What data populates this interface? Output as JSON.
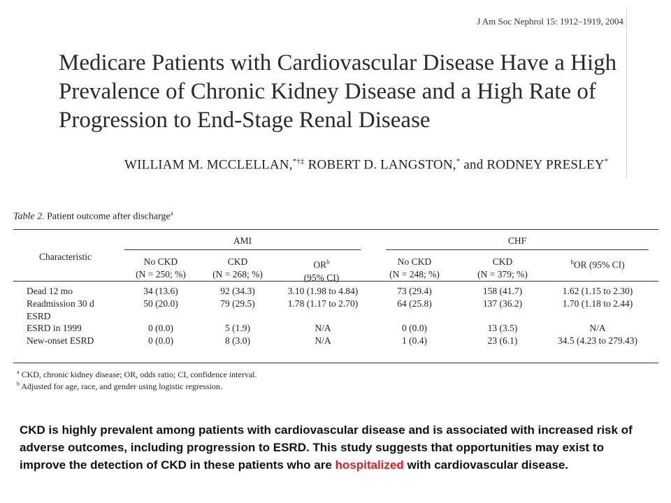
{
  "journal_ref": "J Am Soc Nephrol 15: 1912–1919, 2004",
  "article": {
    "title": "Medicare Patients with Cardiovascular Disease Have a High Prevalence of Chronic Kidney Disease and a High Rate of Progression to End-Stage Renal Disease",
    "authors": [
      {
        "name": "WILLIAM M. MCCLELLAN,",
        "mark": "*†‡"
      },
      {
        "name": " ROBERT D. LANGSTON,",
        "mark": "*"
      },
      {
        "name": " and RODNEY PRESLEY",
        "mark": "*"
      }
    ]
  },
  "table": {
    "caption_label": "Table 2.",
    "caption_text": "Patient outcome after discharge",
    "caption_mark": "a",
    "characteristic_header": "Characteristic",
    "groups": [
      "AMI",
      "CHF"
    ],
    "columns": [
      {
        "line1": "No CKD",
        "line2": "(N = 250; %)"
      },
      {
        "line1": "CKD",
        "line2": "(N = 268; %)"
      },
      {
        "line1": "OR",
        "mark": "b",
        "line2": "(95% CI)"
      },
      {
        "line1": "No CKD",
        "line2": "(N = 248; %)"
      },
      {
        "line1": "CKD",
        "line2": "(N = 379; %)"
      },
      {
        "line1": "OR (95% CI)",
        "premark": "b",
        "line2": ""
      }
    ],
    "rows": [
      {
        "label": "Dead 12 mo",
        "values": [
          "34 (13.6)",
          "92 (34.3)",
          "3.10 (1.98 to 4.84)",
          "73 (29.4)",
          "158 (41.7)",
          "1.62 (1.15 to 2.30)"
        ]
      },
      {
        "label": "Readmission 30 d",
        "values": [
          "50 (20.0)",
          "79 (29.5)",
          "1.78 (1.17 to 2.70)",
          "64 (25.8)",
          "137 (36.2)",
          "1.70 (1.18 to 2.44)"
        ]
      },
      {
        "label": "ESRD",
        "values": [
          "",
          "",
          "",
          "",
          "",
          ""
        ]
      },
      {
        "label": "ESRD in 1999",
        "values": [
          "0 (0.0)",
          "5 (1.9)",
          "N/A",
          "0 (0.0)",
          "13 (3.5)",
          "N/A"
        ]
      },
      {
        "label": "New-onset ESRD",
        "values": [
          "0 (0.0)",
          "8 (3.0)",
          "N/A",
          "1 (0.4)",
          "23 (6.1)",
          "34.5 (4.23 to 279.43)"
        ]
      }
    ],
    "footnotes": [
      {
        "mark": "a",
        "text": " CKD, chronic kidney disease; OR, odds ratio; CI, confidence interval."
      },
      {
        "mark": "b",
        "text": " Adjusted for age, race, and gender using logistic regression."
      }
    ]
  },
  "summary": {
    "before": "CKD is highly prevalent among patients with cardiovascular disease and is associated with increased risk of adverse outcomes, including progression to ESRD. This study suggests that opportunities may exist to improve the detection of CKD in these patients who are ",
    "highlight": "hospitalized",
    "after": " with cardiovascular disease.",
    "highlight_color": "#e0201b"
  }
}
